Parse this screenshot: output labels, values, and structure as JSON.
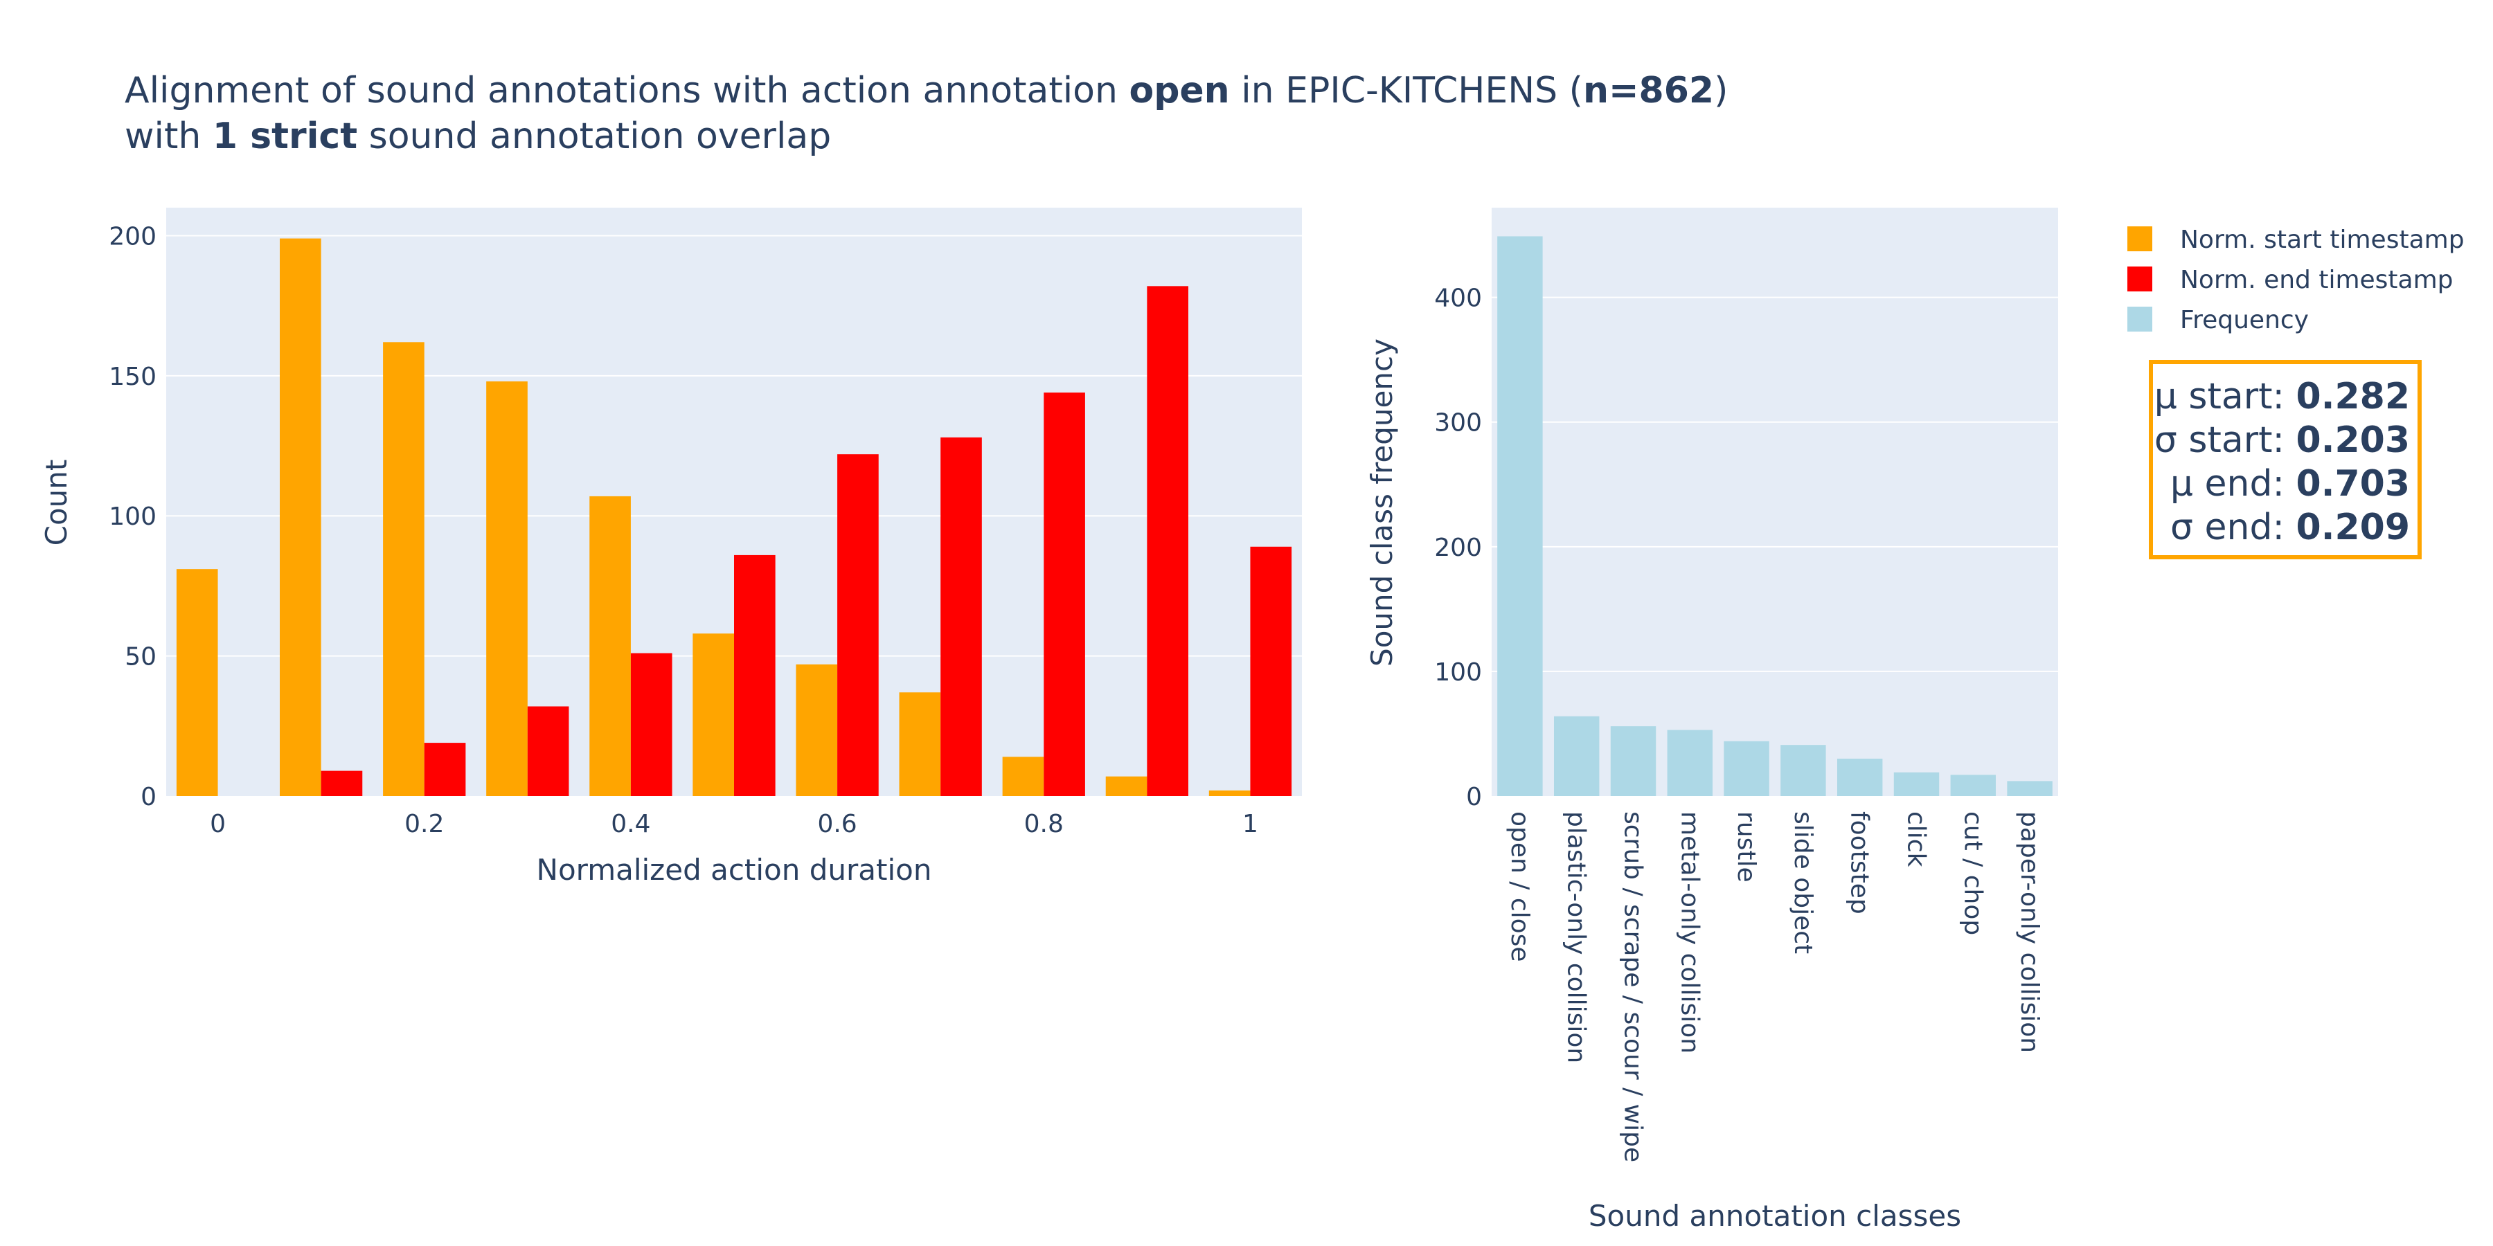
{
  "title": {
    "line1": [
      {
        "text": "Alignment of sound annotations with action annotation ",
        "bold": false
      },
      {
        "text": "open",
        "bold": true
      },
      {
        "text": " in EPIC-KITCHENS (",
        "bold": false
      },
      {
        "text": "n=862",
        "bold": true
      },
      {
        "text": ")",
        "bold": false
      }
    ],
    "line2": [
      {
        "text": "with ",
        "bold": false
      },
      {
        "text": "1 strict",
        "bold": true
      },
      {
        "text": " sound annotation overlap",
        "bold": false
      }
    ]
  },
  "colors": {
    "start": "#ffa500",
    "end": "#ff0000",
    "frequency": "#add8e6",
    "plot_bg": "#e5ecf6",
    "grid": "#ffffff",
    "text": "#2a3f5f",
    "stats_border": "#ffa500"
  },
  "legend": {
    "placement": "top-right",
    "items": [
      {
        "label": "Norm. start timestamp",
        "color_key": "start"
      },
      {
        "label": "Norm. end timestamp",
        "color_key": "end"
      },
      {
        "label": "Frequency",
        "color_key": "frequency"
      }
    ]
  },
  "stats_box": [
    {
      "label": "μ start: ",
      "value": "0.282"
    },
    {
      "label": "σ start: ",
      "value": "0.203"
    },
    {
      "label": "μ end: ",
      "value": "0.703"
    },
    {
      "label": "σ end: ",
      "value": "0.209"
    }
  ],
  "chart_data": [
    {
      "type": "bar",
      "xlabel": "Normalized action duration",
      "ylabel": "Count",
      "x_ticks": [
        "0",
        "0.2",
        "0.4",
        "0.6",
        "0.8",
        "1"
      ],
      "x_tick_values": [
        0,
        0.2,
        0.4,
        0.6,
        0.8,
        1
      ],
      "y_ticks": [
        0,
        50,
        100,
        150,
        200
      ],
      "xlim": [
        -0.05,
        1.05
      ],
      "ylim": [
        0,
        210
      ],
      "grid": true,
      "x": [
        0,
        0.1,
        0.2,
        0.3,
        0.4,
        0.5,
        0.6,
        0.7,
        0.8,
        0.9,
        1.0
      ],
      "series": [
        {
          "name": "Norm. start timestamp",
          "color_key": "start",
          "values": [
            81,
            199,
            162,
            148,
            107,
            58,
            47,
            37,
            14,
            7,
            2
          ]
        },
        {
          "name": "Norm. end timestamp",
          "color_key": "end",
          "values": [
            0,
            9,
            19,
            32,
            51,
            86,
            122,
            128,
            144,
            182,
            89
          ]
        }
      ]
    },
    {
      "type": "bar",
      "xlabel": "Sound annotation classes",
      "ylabel": "Sound class frequency",
      "y_ticks": [
        0,
        100,
        200,
        300,
        400
      ],
      "ylim": [
        0,
        472
      ],
      "grid": true,
      "categories": [
        "open / close",
        "plastic-only collision",
        "scrub / scrape / scour / wipe",
        "metal-only collision",
        "rustle",
        "slide object",
        "footstep",
        "click",
        "cut / chop",
        "paper-only collision"
      ],
      "series": [
        {
          "name": "Frequency",
          "color_key": "frequency",
          "values": [
            449,
            64,
            56,
            53,
            44,
            41,
            30,
            19,
            17,
            12
          ]
        }
      ]
    }
  ]
}
